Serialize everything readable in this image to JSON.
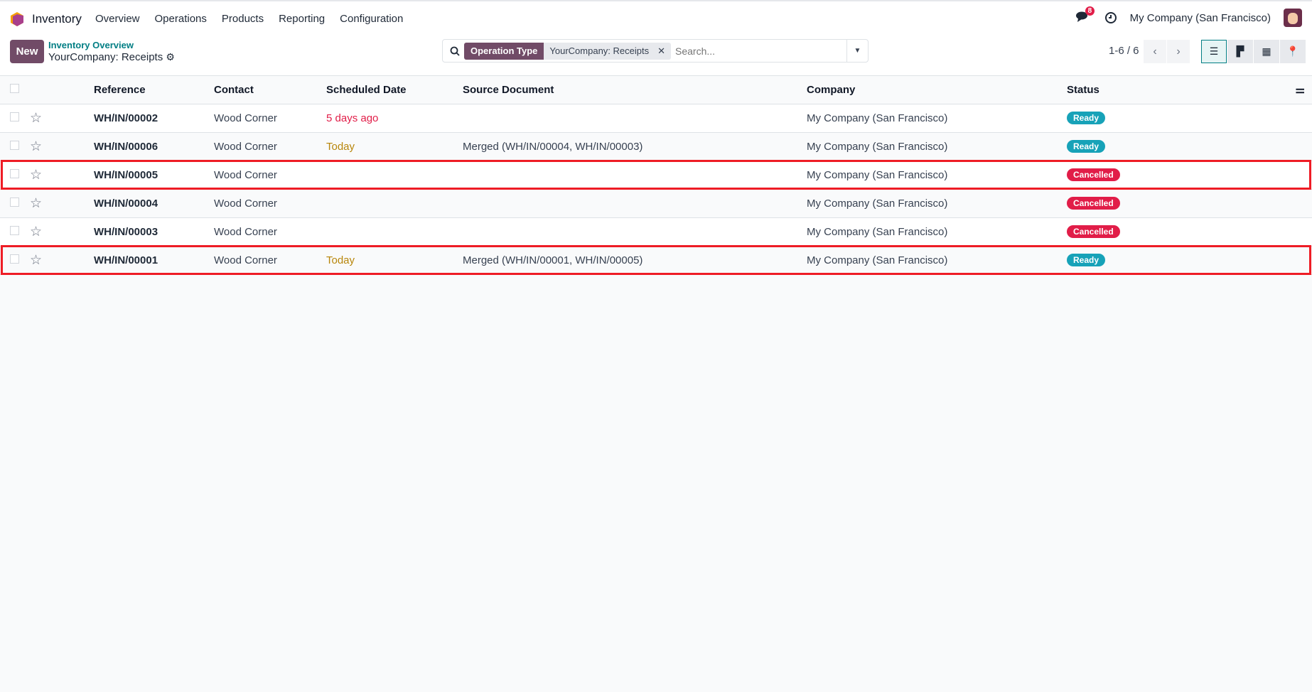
{
  "nav": {
    "app_name": "Inventory",
    "menu": [
      "Overview",
      "Operations",
      "Products",
      "Reporting",
      "Configuration"
    ],
    "message_count": "8",
    "company": "My Company (San Francisco)"
  },
  "control": {
    "new_label": "New",
    "breadcrumb": "Inventory Overview",
    "title": "YourCompany: Receipts",
    "search": {
      "facet_label": "Operation Type",
      "facet_value": "YourCompany: Receipts",
      "placeholder": "Search..."
    },
    "pager": "1-6 / 6"
  },
  "table": {
    "columns": [
      "Reference",
      "Contact",
      "Scheduled Date",
      "Source Document",
      "Company",
      "Status"
    ],
    "rows": [
      {
        "reference": "WH/IN/00002",
        "contact": "Wood Corner",
        "scheduled": "5 days ago",
        "scheduled_state": "late",
        "source": "",
        "company": "My Company (San Francisco)",
        "status": "Ready",
        "highlighted": false
      },
      {
        "reference": "WH/IN/00006",
        "contact": "Wood Corner",
        "scheduled": "Today",
        "scheduled_state": "today",
        "source": "Merged (WH/IN/00004, WH/IN/00003)",
        "company": "My Company (San Francisco)",
        "status": "Ready",
        "highlighted": false
      },
      {
        "reference": "WH/IN/00005",
        "contact": "Wood Corner",
        "scheduled": "",
        "scheduled_state": "",
        "source": "",
        "company": "My Company (San Francisco)",
        "status": "Cancelled",
        "highlighted": true
      },
      {
        "reference": "WH/IN/00004",
        "contact": "Wood Corner",
        "scheduled": "",
        "scheduled_state": "",
        "source": "",
        "company": "My Company (San Francisco)",
        "status": "Cancelled",
        "highlighted": false
      },
      {
        "reference": "WH/IN/00003",
        "contact": "Wood Corner",
        "scheduled": "",
        "scheduled_state": "",
        "source": "",
        "company": "My Company (San Francisco)",
        "status": "Cancelled",
        "highlighted": false
      },
      {
        "reference": "WH/IN/00001",
        "contact": "Wood Corner",
        "scheduled": "Today",
        "scheduled_state": "today",
        "source": "Merged (WH/IN/00001, WH/IN/00005)",
        "company": "My Company (San Francisco)",
        "status": "Ready",
        "highlighted": true
      }
    ]
  },
  "colors": {
    "brand": "#714b67",
    "ready": "#17a2b8",
    "cancelled": "#e11d48",
    "highlight": "#ee1c25",
    "accent": "#017e84"
  }
}
